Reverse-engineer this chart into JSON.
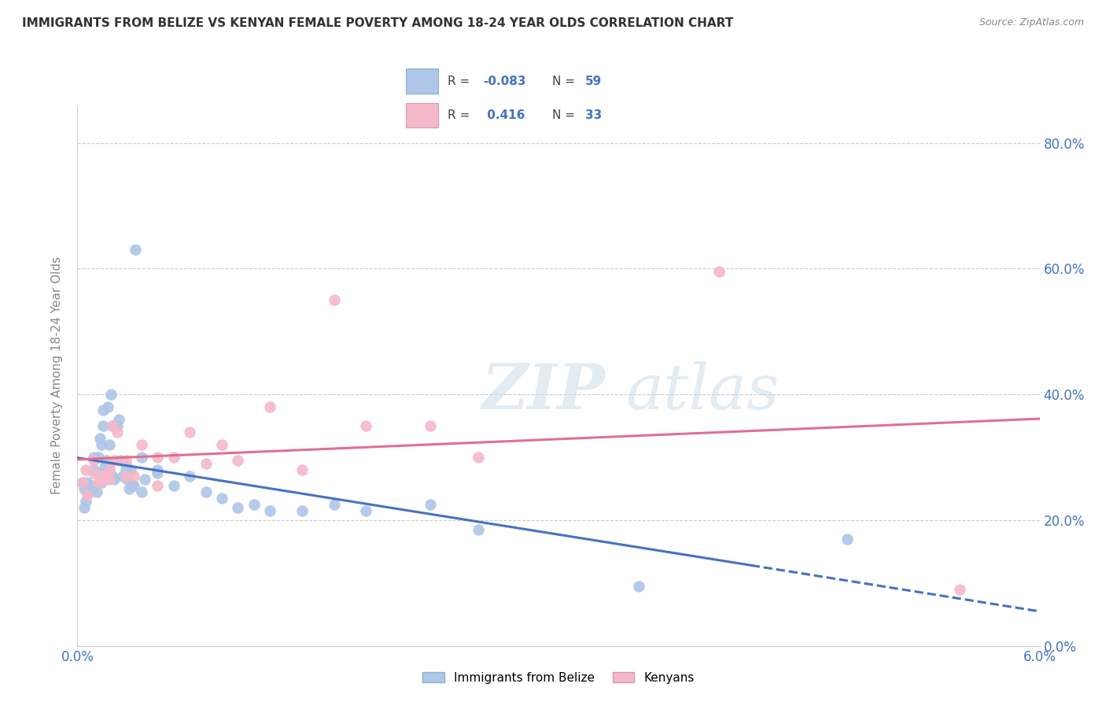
{
  "title": "IMMIGRANTS FROM BELIZE VS KENYAN FEMALE POVERTY AMONG 18-24 YEAR OLDS CORRELATION CHART",
  "source": "Source: ZipAtlas.com",
  "ylabel": "Female Poverty Among 18-24 Year Olds",
  "legend_label1": "Immigrants from Belize",
  "legend_label2": "Kenyans",
  "blue_color": "#aec6e8",
  "pink_color": "#f5b8c8",
  "blue_line_color": "#4472c4",
  "pink_line_color": "#e07090",
  "xlim": [
    0.0,
    0.06
  ],
  "ylim": [
    0.0,
    0.86
  ],
  "yticks": [
    0.0,
    0.2,
    0.4,
    0.6,
    0.8
  ],
  "ytick_labels": [
    "0.0%",
    "20.0%",
    "40.0%",
    "60.0%",
    "80.0%"
  ],
  "blue_scatter_x": [
    0.0003,
    0.0004,
    0.0004,
    0.0005,
    0.0006,
    0.0007,
    0.0008,
    0.0009,
    0.001,
    0.001,
    0.0012,
    0.0013,
    0.0014,
    0.0015,
    0.0015,
    0.0015,
    0.0016,
    0.0016,
    0.0017,
    0.0018,
    0.0019,
    0.002,
    0.002,
    0.002,
    0.0021,
    0.0022,
    0.0022,
    0.0023,
    0.0025,
    0.0026,
    0.0027,
    0.0028,
    0.003,
    0.003,
    0.0031,
    0.0032,
    0.0033,
    0.0034,
    0.0035,
    0.0036,
    0.004,
    0.004,
    0.0042,
    0.005,
    0.005,
    0.006,
    0.007,
    0.008,
    0.009,
    0.01,
    0.011,
    0.012,
    0.014,
    0.016,
    0.018,
    0.022,
    0.025,
    0.035,
    0.048
  ],
  "blue_scatter_y": [
    0.26,
    0.22,
    0.25,
    0.23,
    0.26,
    0.245,
    0.255,
    0.25,
    0.28,
    0.3,
    0.245,
    0.3,
    0.33,
    0.26,
    0.275,
    0.32,
    0.35,
    0.375,
    0.285,
    0.295,
    0.38,
    0.28,
    0.32,
    0.29,
    0.4,
    0.35,
    0.27,
    0.265,
    0.35,
    0.36,
    0.295,
    0.27,
    0.29,
    0.28,
    0.265,
    0.25,
    0.28,
    0.255,
    0.255,
    0.63,
    0.3,
    0.245,
    0.265,
    0.28,
    0.275,
    0.255,
    0.27,
    0.245,
    0.235,
    0.22,
    0.225,
    0.215,
    0.215,
    0.225,
    0.215,
    0.225,
    0.185,
    0.095,
    0.17
  ],
  "pink_scatter_x": [
    0.0003,
    0.0005,
    0.0006,
    0.001,
    0.001,
    0.0013,
    0.0015,
    0.0016,
    0.0018,
    0.002,
    0.002,
    0.0022,
    0.0023,
    0.0025,
    0.003,
    0.003,
    0.0035,
    0.004,
    0.005,
    0.005,
    0.006,
    0.007,
    0.008,
    0.009,
    0.01,
    0.012,
    0.014,
    0.016,
    0.018,
    0.022,
    0.025,
    0.04,
    0.055
  ],
  "pink_scatter_y": [
    0.26,
    0.28,
    0.24,
    0.275,
    0.295,
    0.26,
    0.27,
    0.265,
    0.27,
    0.265,
    0.28,
    0.35,
    0.295,
    0.34,
    0.27,
    0.295,
    0.27,
    0.32,
    0.3,
    0.255,
    0.3,
    0.34,
    0.29,
    0.32,
    0.295,
    0.38,
    0.28,
    0.55,
    0.35,
    0.35,
    0.3,
    0.595,
    0.09
  ]
}
